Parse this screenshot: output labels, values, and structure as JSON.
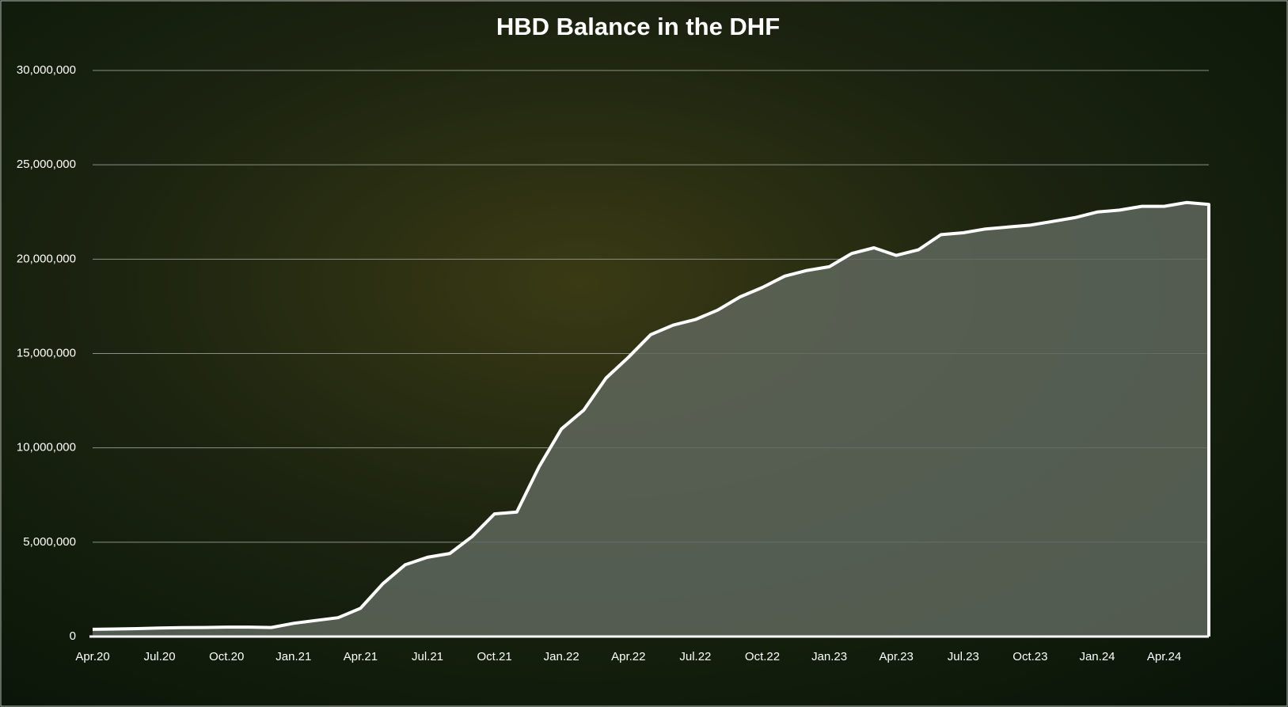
{
  "chart_data": {
    "type": "area",
    "title": "HBD Balance in the DHF",
    "categories": [
      "Apr.20",
      null,
      null,
      "Jul.20",
      null,
      null,
      "Oct.20",
      null,
      null,
      "Jan.21",
      null,
      null,
      "Apr.21",
      null,
      null,
      "Jul.21",
      null,
      null,
      "Oct.21",
      null,
      null,
      "Jan.22",
      null,
      null,
      "Apr.22",
      null,
      null,
      "Jul.22",
      null,
      null,
      "Oct.22",
      null,
      null,
      "Jan.23",
      null,
      null,
      "Apr.23",
      null,
      null,
      "Jul.23",
      null,
      null,
      "Oct.23",
      null,
      null,
      "Jan.24",
      null,
      null,
      "Apr.24",
      null,
      null
    ],
    "values": [
      380000,
      400000,
      420000,
      450000,
      470000,
      480000,
      500000,
      500000,
      480000,
      700000,
      850000,
      1000000,
      1500000,
      2800000,
      3800000,
      4200000,
      4400000,
      5300000,
      6500000,
      6600000,
      9000000,
      11000000,
      12000000,
      13700000,
      14800000,
      16000000,
      16500000,
      16800000,
      17300000,
      18000000,
      18500000,
      19100000,
      19400000,
      19600000,
      20300000,
      20600000,
      20200000,
      20500000,
      21300000,
      21400000,
      21600000,
      21700000,
      21800000,
      22000000,
      22200000,
      22500000,
      22600000,
      22800000,
      22800000,
      23000000,
      22900000
    ],
    "color": "#ffffff",
    "fill": "#5f675d",
    "ylim": [
      0,
      30000000
    ],
    "yticks": [
      0,
      {
        "value": 5000000,
        "label": "5,000,000"
      },
      {
        "value": 10000000,
        "label": "10,000,000"
      },
      {
        "value": 15000000,
        "label": "15,000,000"
      },
      {
        "value": 20000000,
        "label": "20,000,000"
      },
      {
        "value": 25000000,
        "label": "25,000,000"
      },
      {
        "value": 30000000,
        "label": "30,000,000"
      }
    ],
    "grid": true
  }
}
